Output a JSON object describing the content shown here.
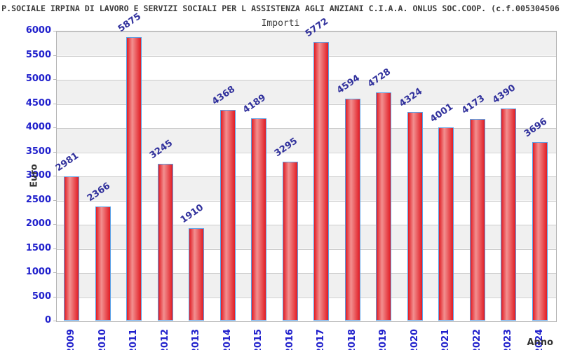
{
  "header": {
    "title": "P.SOCIALE IRPINA DI LAVORO E SERVIZI SOCIALI PER L ASSISTENZA AGLI ANZIANI C.I.A.A. ONLUS SOC.COOP. (c.f.005304506",
    "subtitle": "Importi"
  },
  "chart_data": {
    "type": "bar",
    "title": "Importi",
    "xlabel": "Anno",
    "ylabel": "Euro",
    "categories": [
      "2009",
      "2010",
      "2011",
      "2012",
      "2013",
      "2014",
      "2015",
      "2016",
      "2017",
      "2018",
      "2019",
      "2020",
      "2021",
      "2022",
      "2023",
      "2024"
    ],
    "values": [
      2981,
      2366,
      5875,
      3245,
      1910,
      4368,
      4189,
      3295,
      5772,
      4594,
      4728,
      4324,
      4001,
      4173,
      4390,
      3696
    ],
    "ylim": [
      0,
      6000
    ],
    "ytick_step": 500,
    "grid": true,
    "legend": "none",
    "background_bands": [
      "#ffffff",
      "#f0f0f0"
    ],
    "colors": {
      "bar_edge_red": "#e11c24",
      "bar_center_highlight": "#f29090",
      "bar_border_blue": "#5aa0e6",
      "tick_label_blue": "#2020cc",
      "value_label_navy": "#30309c",
      "axis_label_gray": "#333333",
      "gridline_gray": "#cccccc"
    }
  }
}
